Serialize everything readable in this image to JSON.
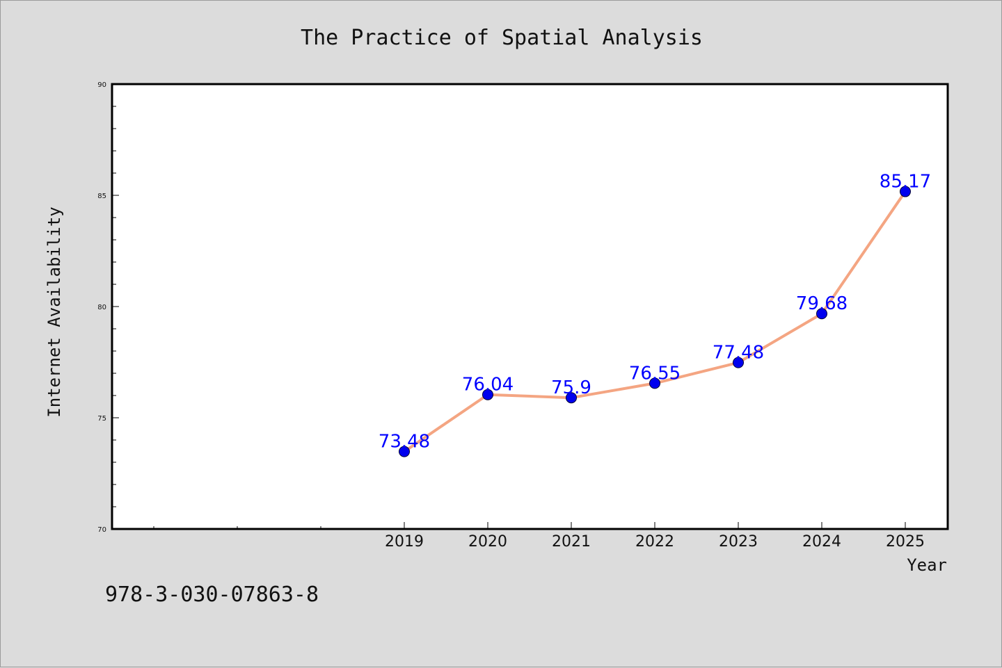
{
  "chart_data": {
    "type": "line",
    "title": "The Practice of Spatial Analysis",
    "xlabel": "Year",
    "ylabel": "Internet Availability",
    "categories": [
      "2019",
      "2020",
      "2021",
      "2022",
      "2023",
      "2024",
      "2025"
    ],
    "values": [
      73.48,
      76.04,
      75.9,
      76.55,
      77.48,
      79.68,
      85.17
    ],
    "data_labels": [
      "73.48",
      "76.04",
      "75.9",
      "76.55",
      "77.48",
      "79.68",
      "85.17"
    ],
    "ylim": [
      70,
      90
    ],
    "yticks": [
      70,
      75,
      80,
      85,
      90
    ],
    "grid": false,
    "legend": "none",
    "colors": {
      "line": "#f4a582",
      "marker": "#0000ee",
      "data_label": "#0000ff",
      "plot_background": "#ffffff",
      "page_background": "#dcdcdc"
    }
  },
  "footnote": "978-3-030-07863-8"
}
